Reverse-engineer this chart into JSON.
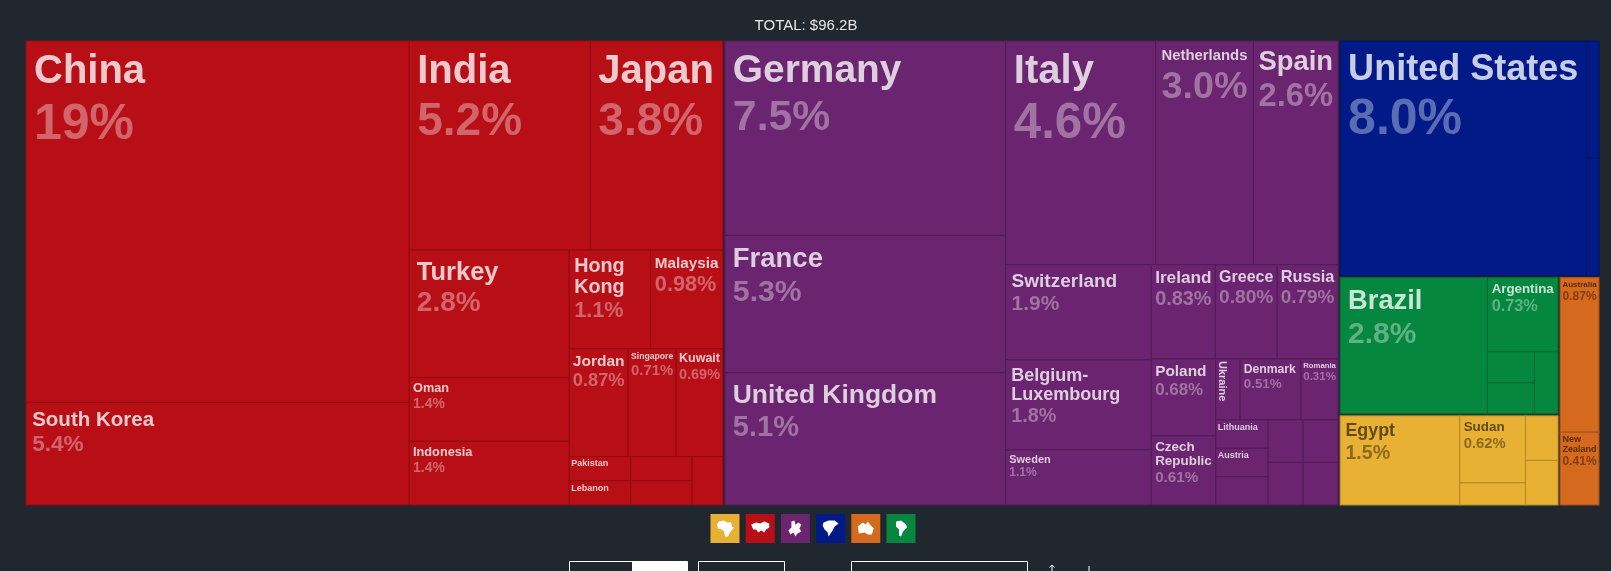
{
  "chart_data": {
    "type": "other",
    "title": "TOTAL: $96.2B",
    "categories": [
      "Egypt",
      "Sudan",
      null,
      null,
      null,
      "China",
      "South Korea",
      "India",
      "Japan",
      "Turkey",
      "Oman",
      "Indonesia",
      "Hong Kong",
      "Malaysia",
      "Jordan",
      "Singapore",
      "Kuwait",
      "Pakistan",
      "Lebanon",
      null,
      null,
      null,
      "Germany",
      "France",
      "United Kingdom",
      "Italy",
      "Netherlands",
      "Spain",
      "Switzerland",
      "Belgium-Luxembourg",
      "Sweden",
      "Ireland",
      "Greece",
      "Russia",
      "Poland",
      "Czech Republic",
      "Ukraine",
      "Denmark",
      "Romania",
      "Lithuania",
      "Austria",
      null,
      null,
      null,
      null,
      null,
      "United States",
      null,
      null,
      "Australia",
      "New Zealand",
      "Brazil",
      "Argentina",
      null,
      null,
      null
    ],
    "values": [
      1.5,
      0.62,
      null,
      null,
      null,
      19,
      5.4,
      5.2,
      3.8,
      2.8,
      1.4,
      1.4,
      1.1,
      0.98,
      0.87,
      0.71,
      0.69,
      null,
      null,
      null,
      null,
      null,
      7.5,
      5.3,
      5.1,
      4.6,
      3.0,
      2.6,
      1.9,
      1.8,
      1.1,
      0.83,
      0.8,
      0.79,
      0.68,
      0.61,
      null,
      0.51,
      0.31,
      null,
      null,
      null,
      null,
      null,
      null,
      null,
      8.0,
      null,
      null,
      0.87,
      0.41,
      2.8,
      0.73,
      null,
      null,
      null
    ],
    "value_labels": [
      "1.5%",
      "0.62%",
      null,
      null,
      null,
      "19%",
      "5.4%",
      "5.2%",
      "3.8%",
      "2.8%",
      "1.4%",
      "1.4%",
      "1.1%",
      "0.98%",
      "0.87%",
      "0.71%",
      "0.69%",
      null,
      null,
      null,
      null,
      null,
      "7.5%",
      "5.3%",
      "5.1%",
      "4.6%",
      "3.0%",
      "2.6%",
      "1.9%",
      "1.8%",
      "1.1%",
      "0.83%",
      "0.80%",
      "0.79%",
      "0.68%",
      "0.61%",
      null,
      "0.51%",
      "0.31%",
      null,
      null,
      null,
      null,
      null,
      null,
      null,
      "8.0%",
      null,
      null,
      "0.87%",
      "0.41%",
      "2.8%",
      "0.73%",
      null,
      null,
      null
    ],
    "colors": [
      "#e8b134",
      "#e8b134",
      "#e8b134",
      "#e8b134",
      "#e8b134",
      "#b80f17",
      "#b80f17",
      "#b80f17",
      "#b80f17",
      "#b80f17",
      "#b80f17",
      "#b80f17",
      "#b80f17",
      "#b80f17",
      "#b80f17",
      "#b80f17",
      "#b80f17",
      "#b80f17",
      "#b80f17",
      "#b80f17",
      "#b80f17",
      "#b80f17",
      "#6b246f",
      "#6b246f",
      "#6b246f",
      "#6b246f",
      "#6b246f",
      "#6b246f",
      "#6b246f",
      "#6b246f",
      "#6b246f",
      "#6b246f",
      "#6b246f",
      "#6b246f",
      "#6b246f",
      "#6b246f",
      "#6b246f",
      "#6b246f",
      "#6b246f",
      "#6b246f",
      "#6b246f",
      "#6b246f",
      "#6b246f",
      "#6b246f",
      "#6b246f",
      "#6b246f",
      "#011a88",
      "#011a88",
      "#011a88",
      "#d5691e",
      "#d5691e",
      "#05873f",
      "#05873f",
      "#05873f",
      "#05873f",
      "#05873f"
    ]
  }
}
